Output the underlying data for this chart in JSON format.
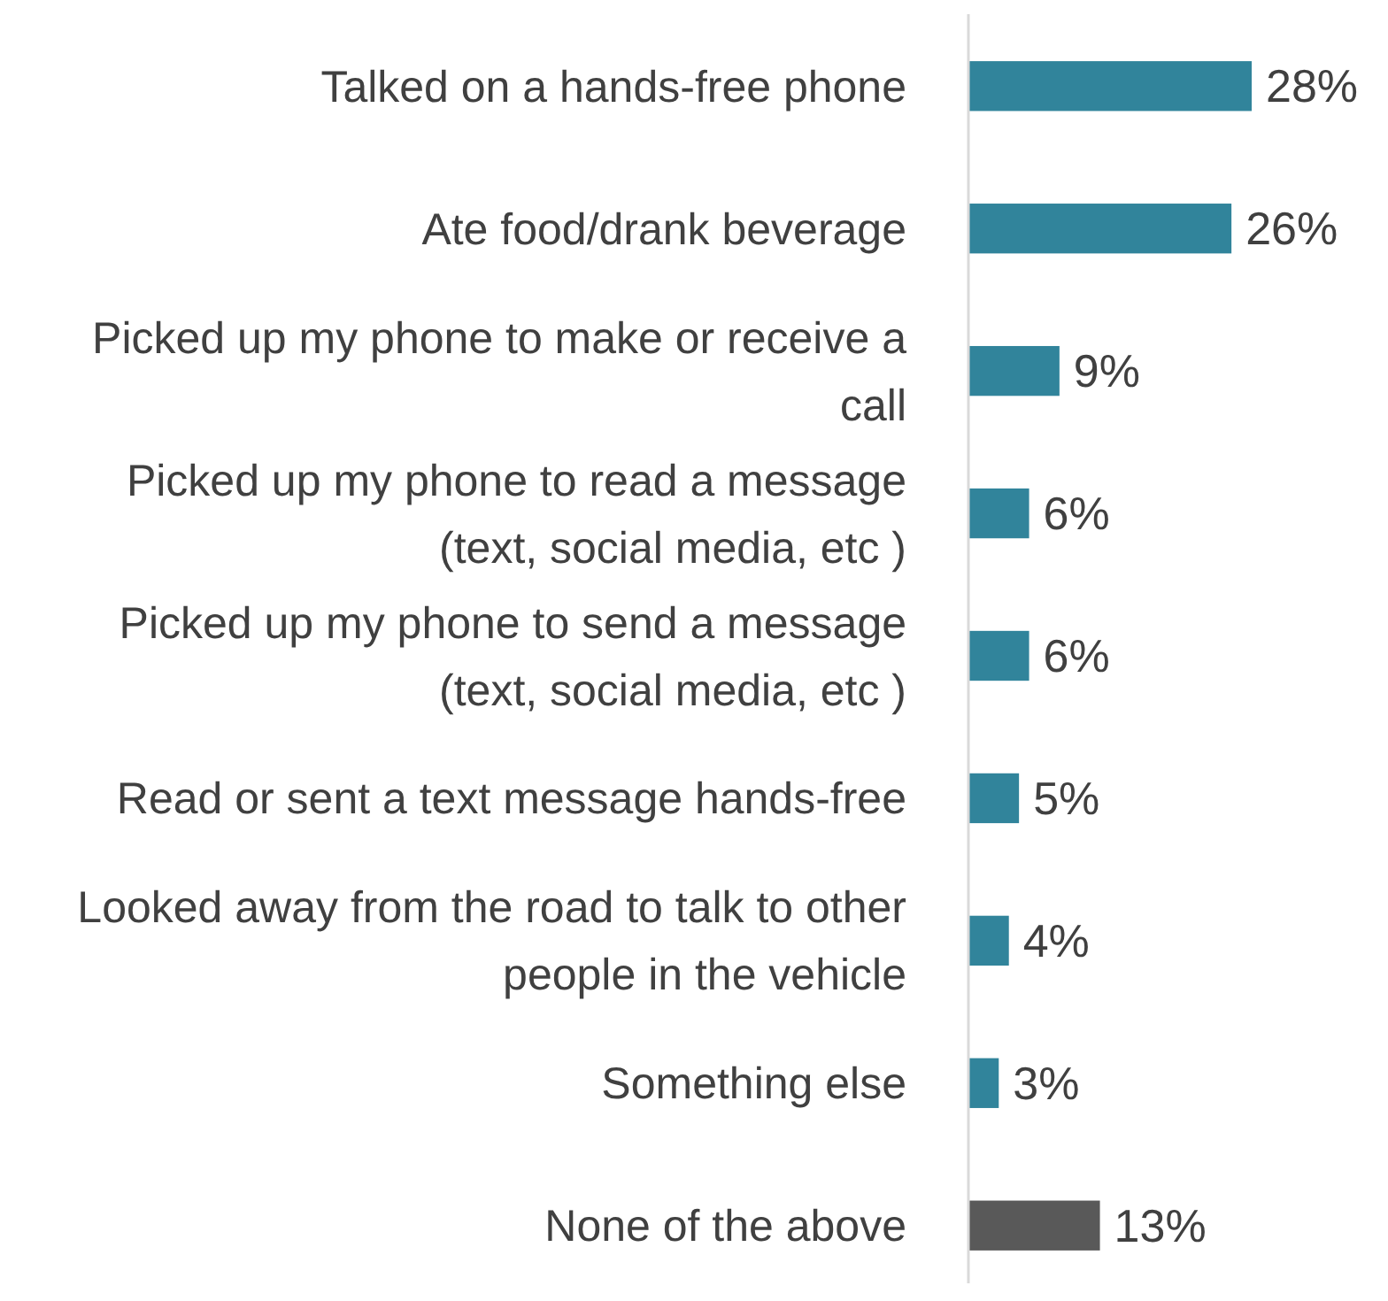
{
  "chart_data": {
    "type": "bar",
    "orientation": "horizontal",
    "data_labels": true,
    "categories": [
      "Talked on a hands-free phone",
      "Ate food/drank beverage",
      "Picked up my phone to make or receive a call",
      "Picked up my phone to read a message (text, social media, etc )",
      "Picked up my phone to send a message (text, social media, etc )",
      "Read or sent a text message hands-free",
      "Looked away from the road to talk to other people in the vehicle",
      "Something else",
      "None of the above"
    ],
    "values": [
      28,
      26,
      9,
      6,
      6,
      5,
      4,
      3,
      13
    ],
    "value_labels": [
      "28%",
      "26%",
      "9%",
      "6%",
      "6%",
      "5%",
      "4%",
      "3%",
      "13%"
    ],
    "colors": [
      "#31849b",
      "#31849b",
      "#31849b",
      "#31849b",
      "#31849b",
      "#31849b",
      "#31849b",
      "#31849b",
      "#595959"
    ]
  }
}
